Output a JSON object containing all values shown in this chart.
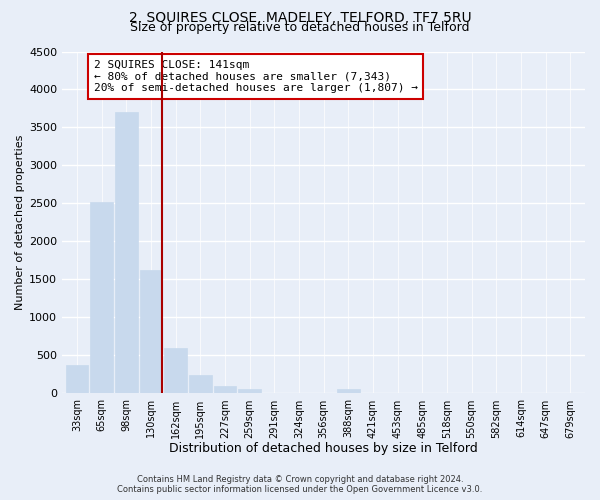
{
  "title": "2, SQUIRES CLOSE, MADELEY, TELFORD, TF7 5RU",
  "subtitle": "Size of property relative to detached houses in Telford",
  "xlabel": "Distribution of detached houses by size in Telford",
  "ylabel": "Number of detached properties",
  "categories": [
    "33sqm",
    "65sqm",
    "98sqm",
    "130sqm",
    "162sqm",
    "195sqm",
    "227sqm",
    "259sqm",
    "291sqm",
    "324sqm",
    "356sqm",
    "388sqm",
    "421sqm",
    "453sqm",
    "485sqm",
    "518sqm",
    "550sqm",
    "582sqm",
    "614sqm",
    "647sqm",
    "679sqm"
  ],
  "values": [
    375,
    2520,
    3700,
    1620,
    600,
    240,
    100,
    55,
    0,
    0,
    0,
    55,
    0,
    0,
    0,
    0,
    0,
    0,
    0,
    0,
    0
  ],
  "bar_color": "#c8d9ed",
  "highlight_color": "#aa0000",
  "highlight_index": 3,
  "ylim": [
    0,
    4500
  ],
  "yticks": [
    0,
    500,
    1000,
    1500,
    2000,
    2500,
    3000,
    3500,
    4000,
    4500
  ],
  "annotation_title": "2 SQUIRES CLOSE: 141sqm",
  "annotation_line1": "← 80% of detached houses are smaller (7,343)",
  "annotation_line2": "20% of semi-detached houses are larger (1,807) →",
  "footer_line1": "Contains HM Land Registry data © Crown copyright and database right 2024.",
  "footer_line2": "Contains public sector information licensed under the Open Government Licence v3.0.",
  "background_color": "#e8eef8",
  "plot_bg_color": "#e8eef8",
  "grid_color": "#ffffff",
  "title_fontsize": 10,
  "subtitle_fontsize": 9,
  "xlabel_fontsize": 9,
  "ylabel_fontsize": 8
}
